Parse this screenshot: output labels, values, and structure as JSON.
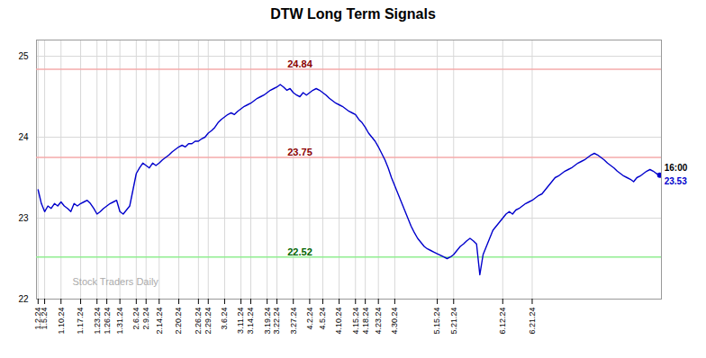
{
  "chart_data": {
    "type": "line",
    "title": "DTW Long Term Signals",
    "categories": [
      "1.2.24",
      null,
      "1.5.24",
      null,
      null,
      null,
      null,
      "1.10.24",
      null,
      null,
      null,
      null,
      null,
      "1.17.24",
      null,
      null,
      null,
      null,
      "1.23.24",
      null,
      null,
      "1.26.24",
      null,
      null,
      null,
      "1.31.24",
      null,
      null,
      null,
      null,
      "2.6.24",
      null,
      null,
      "2.9.24",
      null,
      null,
      null,
      "2.14.24",
      null,
      null,
      null,
      null,
      null,
      "2.20.24",
      null,
      null,
      null,
      null,
      null,
      "2.26.24",
      null,
      null,
      "2.29.24",
      null,
      null,
      null,
      null,
      "3.6.24",
      null,
      null,
      null,
      null,
      "3.11.24",
      null,
      null,
      "3.14.24",
      null,
      null,
      null,
      null,
      "3.19.24",
      null,
      null,
      "3.22.24",
      null,
      null,
      null,
      null,
      "3.27.24",
      null,
      null,
      null,
      null,
      "4.2.24",
      null,
      null,
      null,
      "4.5.24",
      null,
      null,
      null,
      null,
      "4.10.24",
      null,
      null,
      null,
      null,
      "4.15.24",
      null,
      null,
      "4.18.24",
      null,
      null,
      null,
      "4.23.24",
      null,
      null,
      null,
      null,
      "4.30.24",
      null,
      null,
      null,
      null,
      null,
      null,
      null,
      null,
      null,
      null,
      null,
      null,
      "5.15.24",
      null,
      null,
      null,
      null,
      "5.21.24",
      null,
      null,
      null,
      null,
      null,
      null,
      null,
      null,
      null,
      null,
      null,
      null,
      null,
      null,
      "6.12.24",
      null,
      null,
      null,
      null,
      null,
      null,
      null,
      null,
      "6.21.24",
      null,
      null,
      null,
      null,
      null,
      null,
      null,
      null,
      null,
      null,
      null,
      null,
      null,
      null,
      null,
      null,
      null,
      null,
      null,
      null,
      null,
      null,
      null,
      null,
      null,
      null,
      null,
      null,
      null,
      null,
      null,
      null,
      null,
      null,
      null,
      null,
      null,
      null,
      null
    ],
    "values": [
      23.35,
      23.18,
      23.08,
      23.15,
      23.12,
      23.18,
      23.15,
      23.2,
      23.15,
      23.12,
      23.08,
      23.18,
      23.15,
      23.18,
      23.2,
      23.22,
      23.18,
      23.12,
      23.05,
      23.08,
      23.12,
      23.15,
      23.18,
      23.2,
      23.22,
      23.08,
      23.05,
      23.1,
      23.15,
      23.35,
      23.55,
      23.62,
      23.68,
      23.65,
      23.62,
      23.68,
      23.65,
      23.68,
      23.72,
      23.75,
      23.78,
      23.82,
      23.85,
      23.88,
      23.9,
      23.88,
      23.92,
      23.92,
      23.95,
      23.95,
      23.98,
      24.0,
      24.05,
      24.08,
      24.12,
      24.18,
      24.22,
      24.25,
      24.28,
      24.3,
      24.28,
      24.32,
      24.35,
      24.38,
      24.4,
      24.42,
      24.45,
      24.48,
      24.5,
      24.52,
      24.55,
      24.58,
      24.6,
      24.62,
      24.65,
      24.62,
      24.58,
      24.6,
      24.55,
      24.52,
      24.5,
      24.55,
      24.52,
      24.55,
      24.58,
      24.6,
      24.58,
      24.55,
      24.52,
      24.48,
      24.45,
      24.42,
      24.4,
      24.38,
      24.35,
      24.32,
      24.3,
      24.28,
      24.22,
      24.18,
      24.12,
      24.05,
      24.0,
      23.95,
      23.88,
      23.8,
      23.72,
      23.62,
      23.5,
      23.4,
      23.3,
      23.2,
      23.1,
      23.0,
      22.9,
      22.82,
      22.75,
      22.7,
      22.65,
      22.62,
      22.6,
      22.58,
      22.56,
      22.54,
      22.52,
      22.5,
      22.52,
      22.55,
      22.6,
      22.65,
      22.68,
      22.72,
      22.75,
      22.72,
      22.68,
      22.3,
      22.55,
      22.65,
      22.75,
      22.85,
      22.9,
      22.95,
      23.0,
      23.05,
      23.08,
      23.05,
      23.1,
      23.12,
      23.15,
      23.18,
      23.2,
      23.22,
      23.25,
      23.28,
      23.3,
      23.35,
      23.4,
      23.45,
      23.5,
      23.52,
      23.55,
      23.58,
      23.6,
      23.62,
      23.65,
      23.68,
      23.7,
      23.72,
      23.75,
      23.78,
      23.8,
      23.78,
      23.75,
      23.72,
      23.68,
      23.65,
      23.62,
      23.58,
      23.55,
      23.52,
      23.5,
      23.48,
      23.45,
      23.5,
      23.52,
      23.55,
      23.58,
      23.6,
      23.58,
      23.55,
      23.53
    ],
    "color": "#0000cc",
    "ylim": [
      22.0,
      25.2
    ],
    "yticks": [
      22,
      23,
      24,
      25
    ],
    "grid": true,
    "reference_lines": [
      {
        "value": 24.84,
        "color": "#f4aaaa",
        "label_color": "#8b0000"
      },
      {
        "value": 23.75,
        "color": "#f4aaaa",
        "label_color": "#8b0000"
      },
      {
        "value": 22.52,
        "color": "#90ee90",
        "label_color": "#006400"
      }
    ],
    "last_point": {
      "label": "16:00",
      "value": 23.53
    },
    "watermark": "Stock Traders Daily"
  }
}
